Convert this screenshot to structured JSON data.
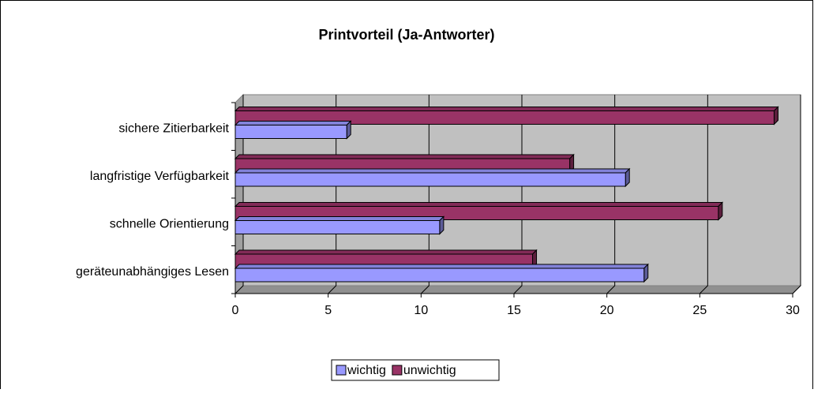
{
  "chart_data": {
    "type": "bar",
    "orientation": "horizontal",
    "title": "Printvorteil (Ja-Antworter)",
    "categories": [
      "geräteunabhängiges Lesen",
      "schnelle Orientierung",
      "langfristige Verfügbarkeit",
      "sichere Zitierbarkeit"
    ],
    "series": [
      {
        "name": "wichtig",
        "color": "#9999ff",
        "values": [
          22,
          11,
          21,
          6
        ]
      },
      {
        "name": "unwichtig",
        "color": "#993366",
        "values": [
          16,
          26,
          18,
          29
        ]
      }
    ],
    "xlim": [
      0,
      30
    ],
    "xticks": [
      0,
      5,
      10,
      15,
      20,
      25,
      30
    ],
    "grid": true,
    "legend": "bottom"
  }
}
